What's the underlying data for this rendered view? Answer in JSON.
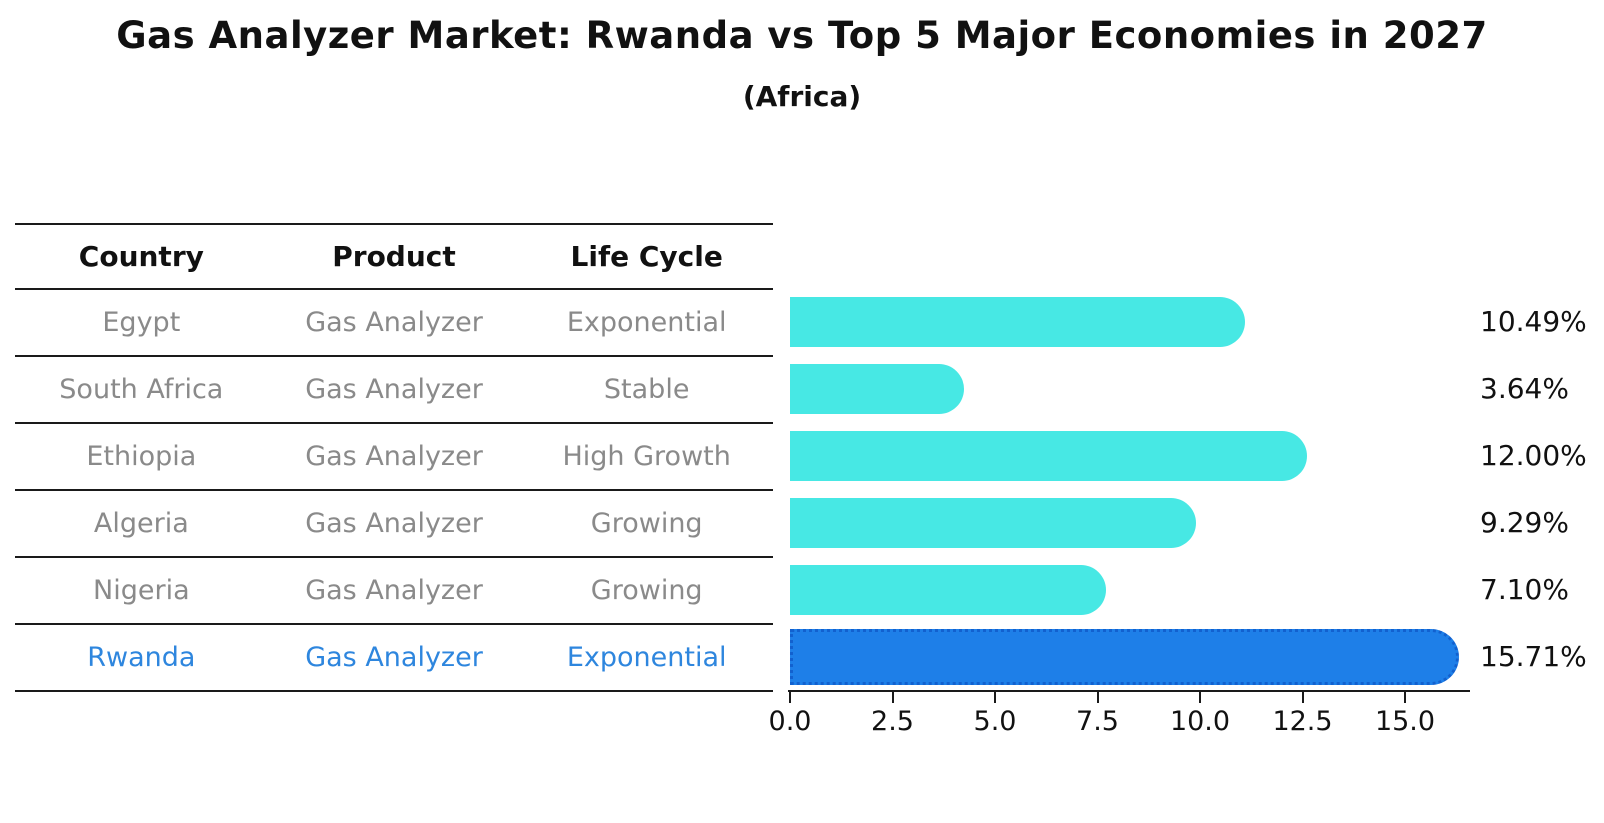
{
  "title": "Gas Analyzer Market: Rwanda vs Top 5 Major Economies in 2027",
  "subtitle": "(Africa)",
  "table": {
    "headers": [
      "Country",
      "Product",
      "Life Cycle"
    ],
    "rows": [
      {
        "country": "Egypt",
        "product": "Gas Analyzer",
        "life_cycle": "Exponential",
        "highlight": false
      },
      {
        "country": "South Africa",
        "product": "Gas Analyzer",
        "life_cycle": "Stable",
        "highlight": false
      },
      {
        "country": "Ethiopia",
        "product": "Gas Analyzer",
        "life_cycle": "High Growth",
        "highlight": false
      },
      {
        "country": "Algeria",
        "product": "Gas Analyzer",
        "life_cycle": "Growing",
        "highlight": false
      },
      {
        "country": "Nigeria",
        "product": "Gas Analyzer",
        "life_cycle": "Growing",
        "highlight": false
      },
      {
        "country": "Rwanda",
        "product": "Gas Analyzer",
        "life_cycle": "Exponential",
        "highlight": true
      }
    ]
  },
  "chart_data": {
    "type": "bar",
    "orientation": "horizontal",
    "title": "Gas Analyzer Market: Rwanda vs Top 5 Major Economies in 2027",
    "subtitle": "(Africa)",
    "categories": [
      "Egypt",
      "South Africa",
      "Ethiopia",
      "Algeria",
      "Nigeria",
      "Rwanda"
    ],
    "values": [
      10.49,
      3.64,
      12.0,
      9.29,
      7.1,
      15.71
    ],
    "value_labels": [
      "10.49%",
      "3.64%",
      "12.00%",
      "9.29%",
      "7.10%",
      "15.71%"
    ],
    "xlabel": "",
    "ylabel": "",
    "x_ticks": [
      0.0,
      2.5,
      5.0,
      7.5,
      10.0,
      12.5,
      15.0
    ],
    "x_tick_labels": [
      "0.0",
      "2.5",
      "5.0",
      "7.5",
      "10.0",
      "12.5",
      "15.0"
    ],
    "xlim": [
      0,
      16.5
    ],
    "grid": false,
    "legend": false,
    "highlight_index": 5
  },
  "colors": {
    "bar": "#47E8E4",
    "highlight_bar": "#1E7FE8",
    "highlight_border": "#1261CF",
    "highlight_text": "#2E86DE",
    "table_text": "#8A8A8A",
    "text": "#111111"
  }
}
